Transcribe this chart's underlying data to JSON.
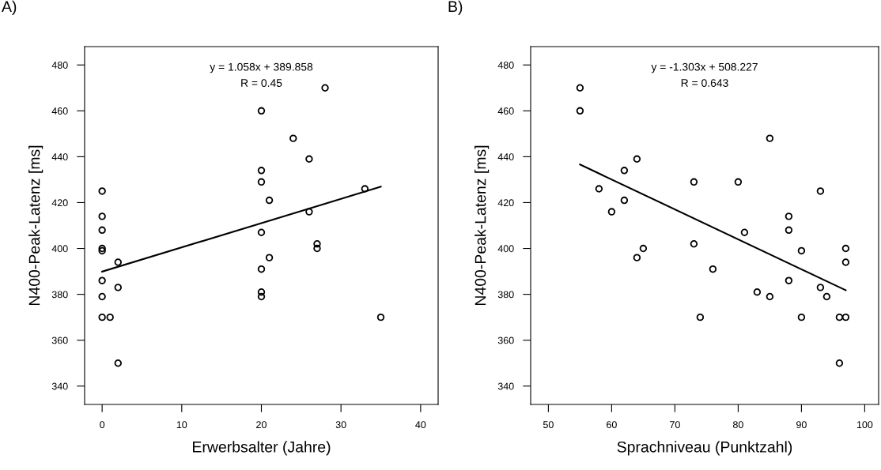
{
  "chart_data": [
    {
      "type": "scatter",
      "title": "A)",
      "xlabel": "Erwerbsalter (Jahre)",
      "ylabel": "N400-Peak-Latenz [ms]",
      "xlim": [
        -2.2,
        42.2
      ],
      "ylim": [
        332,
        488
      ],
      "xticks": [
        0,
        10,
        20,
        30,
        40
      ],
      "yticks": [
        340,
        360,
        380,
        400,
        420,
        440,
        460,
        480
      ],
      "grid": false,
      "annotations": [
        "y = 1.058x + 389.858",
        "R = 0.45"
      ],
      "series": [
        {
          "color": "#000000",
          "marker": "circle",
          "x": [
            0,
            0,
            0,
            0,
            0,
            0,
            0,
            0,
            1,
            2,
            2,
            2,
            20,
            20,
            20,
            20,
            20,
            20,
            20,
            21,
            21,
            24,
            26,
            26,
            27,
            27,
            28,
            33,
            35
          ],
          "values": [
            425,
            414,
            408,
            400,
            399,
            386,
            379,
            370,
            370,
            394,
            383,
            350,
            460,
            434,
            429,
            407,
            391,
            381,
            379,
            421,
            396,
            448,
            439,
            416,
            402,
            400,
            470,
            426,
            370
          ]
        },
        {
          "type": "line",
          "color": "#000000",
          "x": [
            0,
            35
          ],
          "values": [
            389.9,
            426.9
          ]
        }
      ]
    },
    {
      "type": "scatter",
      "title": "B)",
      "xlabel": "Sprachniveau (Punktzahl)",
      "ylabel": "N400-Peak-Latenz [ms]",
      "xlim": [
        47.2,
        102.2
      ],
      "ylim": [
        332,
        488
      ],
      "xticks": [
        50,
        60,
        70,
        80,
        90,
        100
      ],
      "yticks": [
        340,
        360,
        380,
        400,
        420,
        440,
        460,
        480
      ],
      "grid": false,
      "annotations": [
        "y = -1.303x + 508.227",
        "R = 0.643"
      ],
      "series": [
        {
          "color": "#000000",
          "marker": "circle",
          "x": [
            55,
            55,
            58,
            60,
            62,
            62,
            64,
            64,
            65,
            73,
            73,
            74,
            76,
            80,
            81,
            83,
            85,
            85,
            88,
            88,
            88,
            90,
            90,
            93,
            93,
            94,
            96,
            96,
            97,
            97,
            97
          ],
          "values": [
            470,
            460,
            426,
            416,
            434,
            421,
            439,
            396,
            400,
            429,
            402,
            370,
            391,
            429,
            407,
            381,
            448,
            379,
            414,
            408,
            386,
            399,
            370,
            425,
            383,
            379,
            370,
            350,
            400,
            394,
            370
          ]
        },
        {
          "type": "line",
          "color": "#000000",
          "x": [
            55,
            97
          ],
          "values": [
            436.6,
            381.8
          ]
        }
      ]
    }
  ]
}
